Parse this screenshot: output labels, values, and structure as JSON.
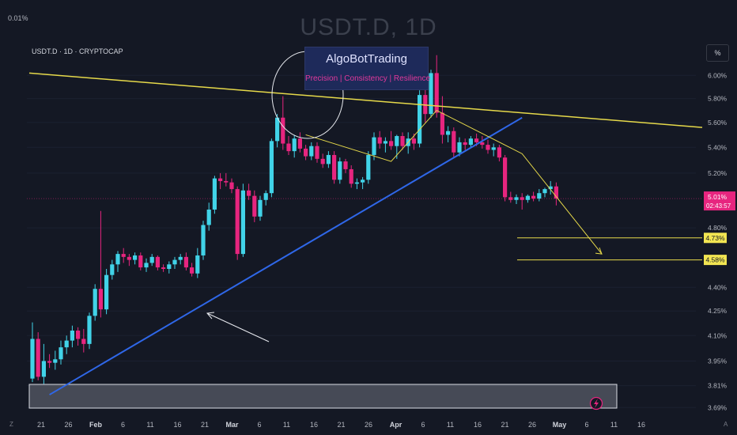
{
  "header": {
    "corner_value": "0.01%",
    "title": "USDT.D, 1D",
    "symbol_line": "USDT.D · 1D · CRYPTOCAP",
    "scale_button": "%",
    "goto_left": "Z",
    "goto_right": "A"
  },
  "brand": {
    "name": "AlgoBotTrading",
    "tagline": "Precision | Consistency | Resilience"
  },
  "colors": {
    "background": "#141824",
    "up": "#41d3e8",
    "down": "#e7257f",
    "trend_yellow": "#e6d94a",
    "trend_blue": "#2f67e8",
    "axis_text": "#b2b5be",
    "price_tag": "#e7257f",
    "target_tag": "#f2e552"
  },
  "chart_data": {
    "type": "candlestick",
    "title": "USDT.D, 1D",
    "yscale": "log",
    "ylim": [
      3.67,
      6.25
    ],
    "y_ticks": [
      "6.00%",
      "5.80%",
      "5.60%",
      "5.40%",
      "5.20%",
      "4.80%",
      "4.40%",
      "4.25%",
      "4.10%",
      "3.95%",
      "3.81%",
      "3.69%"
    ],
    "x_ticks": [
      "21",
      "26",
      "Feb",
      "6",
      "11",
      "16",
      "21",
      "Mar",
      "6",
      "11",
      "16",
      "21",
      "26",
      "Apr",
      "6",
      "11",
      "16",
      "21",
      "26",
      "May",
      "6",
      "11",
      "16"
    ],
    "candles": [
      {
        "o": 3.85,
        "h": 4.18,
        "l": 3.83,
        "c": 4.08
      },
      {
        "o": 4.08,
        "h": 4.12,
        "l": 3.84,
        "c": 3.86
      },
      {
        "o": 3.86,
        "h": 4.05,
        "l": 3.82,
        "c": 3.95
      },
      {
        "o": 3.95,
        "h": 3.99,
        "l": 3.91,
        "c": 3.94
      },
      {
        "o": 3.94,
        "h": 4.01,
        "l": 3.9,
        "c": 3.96
      },
      {
        "o": 3.96,
        "h": 4.07,
        "l": 3.93,
        "c": 4.03
      },
      {
        "o": 4.03,
        "h": 4.1,
        "l": 3.99,
        "c": 4.07
      },
      {
        "o": 4.07,
        "h": 4.16,
        "l": 4.03,
        "c": 4.13
      },
      {
        "o": 4.13,
        "h": 4.15,
        "l": 4.04,
        "c": 4.08
      },
      {
        "o": 4.08,
        "h": 4.14,
        "l": 4.0,
        "c": 4.05
      },
      {
        "o": 4.05,
        "h": 4.24,
        "l": 4.02,
        "c": 4.22
      },
      {
        "o": 4.22,
        "h": 4.42,
        "l": 4.19,
        "c": 4.39
      },
      {
        "o": 4.39,
        "h": 4.92,
        "l": 4.21,
        "c": 4.26
      },
      {
        "o": 4.26,
        "h": 4.52,
        "l": 4.23,
        "c": 4.48
      },
      {
        "o": 4.48,
        "h": 4.58,
        "l": 4.45,
        "c": 4.55
      },
      {
        "o": 4.55,
        "h": 4.64,
        "l": 4.5,
        "c": 4.62
      },
      {
        "o": 4.62,
        "h": 4.66,
        "l": 4.56,
        "c": 4.6
      },
      {
        "o": 4.6,
        "h": 4.62,
        "l": 4.54,
        "c": 4.58
      },
      {
        "o": 4.58,
        "h": 4.63,
        "l": 4.55,
        "c": 4.61
      },
      {
        "o": 4.61,
        "h": 4.63,
        "l": 4.51,
        "c": 4.53
      },
      {
        "o": 4.53,
        "h": 4.59,
        "l": 4.5,
        "c": 4.56
      },
      {
        "o": 4.56,
        "h": 4.62,
        "l": 4.54,
        "c": 4.6
      },
      {
        "o": 4.6,
        "h": 4.61,
        "l": 4.51,
        "c": 4.53
      },
      {
        "o": 4.53,
        "h": 4.55,
        "l": 4.5,
        "c": 4.52
      },
      {
        "o": 4.52,
        "h": 4.57,
        "l": 4.49,
        "c": 4.55
      },
      {
        "o": 4.55,
        "h": 4.6,
        "l": 4.52,
        "c": 4.58
      },
      {
        "o": 4.58,
        "h": 4.62,
        "l": 4.55,
        "c": 4.6
      },
      {
        "o": 4.6,
        "h": 4.63,
        "l": 4.51,
        "c": 4.53
      },
      {
        "o": 4.53,
        "h": 4.56,
        "l": 4.47,
        "c": 4.49
      },
      {
        "o": 4.49,
        "h": 4.66,
        "l": 4.46,
        "c": 4.61
      },
      {
        "o": 4.61,
        "h": 4.85,
        "l": 4.58,
        "c": 4.82
      },
      {
        "o": 4.82,
        "h": 4.98,
        "l": 4.78,
        "c": 4.93
      },
      {
        "o": 4.93,
        "h": 5.18,
        "l": 4.9,
        "c": 5.16
      },
      {
        "o": 5.16,
        "h": 5.2,
        "l": 5.08,
        "c": 5.14
      },
      {
        "o": 5.14,
        "h": 5.2,
        "l": 5.1,
        "c": 5.13
      },
      {
        "o": 5.13,
        "h": 5.16,
        "l": 5.05,
        "c": 5.08
      },
      {
        "o": 5.08,
        "h": 5.1,
        "l": 4.58,
        "c": 4.62
      },
      {
        "o": 4.62,
        "h": 5.12,
        "l": 4.6,
        "c": 5.07
      },
      {
        "o": 5.07,
        "h": 5.12,
        "l": 5.0,
        "c": 5.03
      },
      {
        "o": 5.03,
        "h": 5.07,
        "l": 4.84,
        "c": 4.88
      },
      {
        "o": 4.88,
        "h": 5.03,
        "l": 4.85,
        "c": 5.0
      },
      {
        "o": 5.0,
        "h": 5.07,
        "l": 4.96,
        "c": 5.05
      },
      {
        "o": 5.05,
        "h": 5.47,
        "l": 5.02,
        "c": 5.45
      },
      {
        "o": 5.45,
        "h": 5.67,
        "l": 5.4,
        "c": 5.64
      },
      {
        "o": 5.64,
        "h": 5.82,
        "l": 5.38,
        "c": 5.43
      },
      {
        "o": 5.43,
        "h": 5.49,
        "l": 5.34,
        "c": 5.37
      },
      {
        "o": 5.37,
        "h": 5.5,
        "l": 5.32,
        "c": 5.47
      },
      {
        "o": 5.47,
        "h": 5.52,
        "l": 5.36,
        "c": 5.39
      },
      {
        "o": 5.39,
        "h": 5.42,
        "l": 5.3,
        "c": 5.33
      },
      {
        "o": 5.33,
        "h": 5.44,
        "l": 5.3,
        "c": 5.41
      },
      {
        "o": 5.41,
        "h": 5.44,
        "l": 5.28,
        "c": 5.31
      },
      {
        "o": 5.31,
        "h": 5.35,
        "l": 5.24,
        "c": 5.27
      },
      {
        "o": 5.27,
        "h": 5.37,
        "l": 5.24,
        "c": 5.34
      },
      {
        "o": 5.34,
        "h": 5.37,
        "l": 5.12,
        "c": 5.15
      },
      {
        "o": 5.15,
        "h": 5.32,
        "l": 5.12,
        "c": 5.29
      },
      {
        "o": 5.29,
        "h": 5.31,
        "l": 5.2,
        "c": 5.23
      },
      {
        "o": 5.23,
        "h": 5.26,
        "l": 5.09,
        "c": 5.12
      },
      {
        "o": 5.12,
        "h": 5.16,
        "l": 5.08,
        "c": 5.13
      },
      {
        "o": 5.13,
        "h": 5.17,
        "l": 5.08,
        "c": 5.15
      },
      {
        "o": 5.15,
        "h": 5.37,
        "l": 5.12,
        "c": 5.34
      },
      {
        "o": 5.34,
        "h": 5.52,
        "l": 5.3,
        "c": 5.48
      },
      {
        "o": 5.48,
        "h": 5.53,
        "l": 5.39,
        "c": 5.43
      },
      {
        "o": 5.43,
        "h": 5.48,
        "l": 5.36,
        "c": 5.45
      },
      {
        "o": 5.45,
        "h": 5.53,
        "l": 5.38,
        "c": 5.41
      },
      {
        "o": 5.41,
        "h": 5.5,
        "l": 5.31,
        "c": 5.49
      },
      {
        "o": 5.49,
        "h": 5.52,
        "l": 5.38,
        "c": 5.41
      },
      {
        "o": 5.41,
        "h": 5.52,
        "l": 5.35,
        "c": 5.47
      },
      {
        "o": 5.47,
        "h": 5.51,
        "l": 5.38,
        "c": 5.43
      },
      {
        "o": 5.43,
        "h": 5.87,
        "l": 5.4,
        "c": 5.83
      },
      {
        "o": 5.83,
        "h": 5.92,
        "l": 5.6,
        "c": 5.67
      },
      {
        "o": 5.67,
        "h": 6.05,
        "l": 5.64,
        "c": 6.02
      },
      {
        "o": 6.02,
        "h": 6.18,
        "l": 5.64,
        "c": 5.68
      },
      {
        "o": 5.68,
        "h": 5.82,
        "l": 5.43,
        "c": 5.5
      },
      {
        "o": 5.5,
        "h": 5.57,
        "l": 5.44,
        "c": 5.53
      },
      {
        "o": 5.53,
        "h": 5.56,
        "l": 5.32,
        "c": 5.36
      },
      {
        "o": 5.36,
        "h": 5.48,
        "l": 5.33,
        "c": 5.44
      },
      {
        "o": 5.44,
        "h": 5.47,
        "l": 5.38,
        "c": 5.42
      },
      {
        "o": 5.42,
        "h": 5.49,
        "l": 5.4,
        "c": 5.47
      },
      {
        "o": 5.47,
        "h": 5.51,
        "l": 5.41,
        "c": 5.44
      },
      {
        "o": 5.44,
        "h": 5.49,
        "l": 5.39,
        "c": 5.42
      },
      {
        "o": 5.42,
        "h": 5.46,
        "l": 5.35,
        "c": 5.38
      },
      {
        "o": 5.38,
        "h": 5.43,
        "l": 5.33,
        "c": 5.4
      },
      {
        "o": 5.4,
        "h": 5.42,
        "l": 5.29,
        "c": 5.32
      },
      {
        "o": 5.32,
        "h": 5.34,
        "l": 4.99,
        "c": 5.02
      },
      {
        "o": 5.02,
        "h": 5.06,
        "l": 4.98,
        "c": 5.0
      },
      {
        "o": 5.0,
        "h": 5.04,
        "l": 4.97,
        "c": 5.02
      },
      {
        "o": 5.02,
        "h": 5.05,
        "l": 4.93,
        "c": 5.0
      },
      {
        "o": 5.0,
        "h": 5.04,
        "l": 4.98,
        "c": 5.03
      },
      {
        "o": 5.03,
        "h": 5.06,
        "l": 4.99,
        "c": 5.01
      },
      {
        "o": 5.01,
        "h": 5.08,
        "l": 4.99,
        "c": 5.05
      },
      {
        "o": 5.05,
        "h": 5.09,
        "l": 5.02,
        "c": 5.08
      },
      {
        "o": 5.08,
        "h": 5.14,
        "l": 5.04,
        "c": 5.1
      },
      {
        "o": 5.1,
        "h": 5.13,
        "l": 4.96,
        "c": 5.01
      }
    ],
    "current_price": "5.01%",
    "countdown": "02:43:57",
    "targets": [
      "4.73%",
      "4.58%"
    ],
    "overlays": {
      "yellow_resistance": {
        "from": [
          0,
          6.02
        ],
        "to": [
          120,
          5.56
        ]
      },
      "blue_support": {
        "from": [
          3,
          3.76
        ],
        "to": [
          86,
          5.64
        ]
      },
      "target_lines": [
        4.73,
        4.58
      ]
    }
  }
}
